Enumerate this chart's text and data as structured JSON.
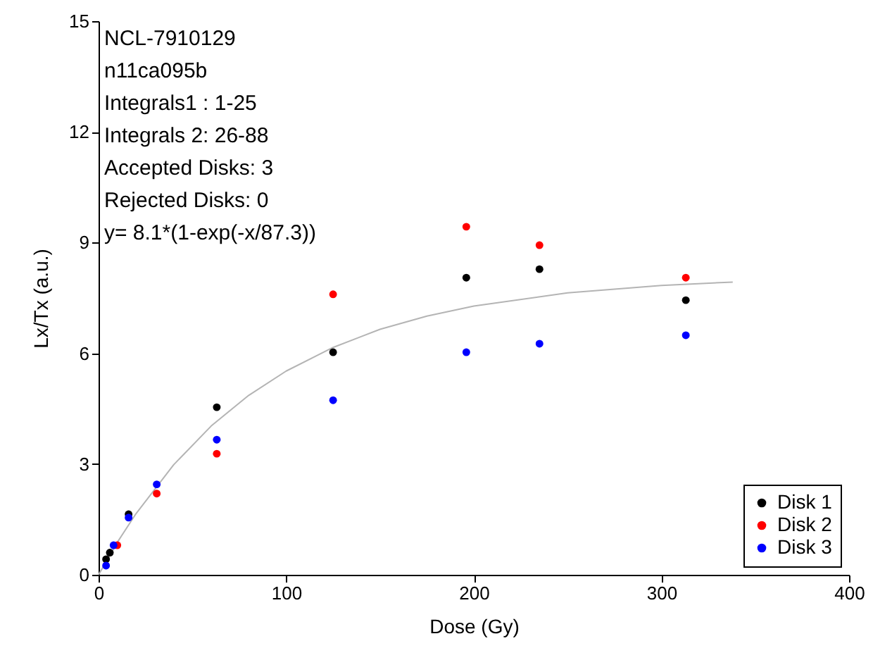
{
  "chart_data": {
    "type": "scatter",
    "xlabel": "Dose (Gy)",
    "ylabel": "Lx/Tx (a.u.)",
    "xlim": [
      0,
      400
    ],
    "xticks": [
      0,
      100,
      200,
      300,
      400
    ],
    "ylim": [
      0,
      15
    ],
    "yticks": [
      0,
      3,
      6,
      9,
      12,
      15
    ],
    "grid": false,
    "legend": "bottom right",
    "marker": "circle",
    "annotations": [
      "NCL-7910129",
      "n11ca095b",
      "Integrals1 : 1-25",
      "Integrals 2: 26-88",
      "Accepted Disks: 3",
      "Rejected Disks: 0",
      "y= 8.1*(1-exp(-x/87.3))"
    ],
    "series": [
      {
        "type": "line",
        "color": "#b4b4b4",
        "marker": "none",
        "x": [
          0,
          10,
          20,
          40,
          60,
          80,
          100,
          125,
          150,
          175,
          200,
          250,
          300,
          338
        ],
        "values": [
          0,
          0.88,
          1.66,
          2.98,
          4.03,
          4.86,
          5.52,
          6.16,
          6.65,
          7.01,
          7.28,
          7.64,
          7.84,
          7.93
        ]
      },
      {
        "name": "Disk 1",
        "color": "#000000",
        "x": [
          4,
          6,
          16,
          63,
          125,
          196,
          235,
          313
        ],
        "values": [
          0.42,
          0.6,
          1.64,
          4.54,
          6.03,
          8.05,
          8.28,
          7.44
        ]
      },
      {
        "name": "Disk 2",
        "color": "#ff0000",
        "x": [
          10,
          16,
          31,
          63,
          125,
          196,
          235,
          313
        ],
        "values": [
          0.8,
          null,
          2.2,
          3.28,
          7.6,
          9.43,
          8.93,
          8.05
        ]
      },
      {
        "name": "Disk 3",
        "color": "#0000ff",
        "x": [
          4,
          8,
          16,
          31,
          63,
          125,
          196,
          235,
          313
        ],
        "values": [
          0.25,
          0.8,
          1.55,
          2.45,
          3.66,
          4.73,
          6.03,
          6.26,
          6.49
        ]
      }
    ]
  }
}
